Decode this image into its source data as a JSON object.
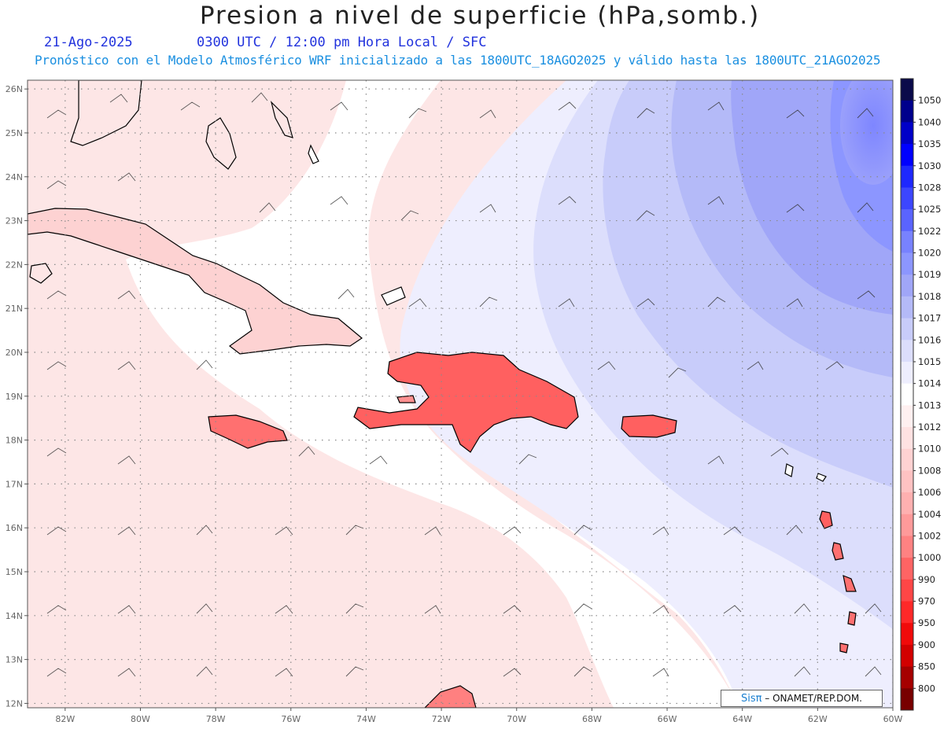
{
  "header": {
    "title": "Presion a nivel de superficie (hPa,somb.)",
    "date": "21-Ago-2025",
    "time_info": "0300 UTC / 12:00 pm Hora Local / SFC",
    "model_info": "Pronóstico con el Modelo Atmosférico WRF inicializado a las 1800UTC_18AGO2025 y válido hasta las  1800UTC_21AGO2025"
  },
  "map": {
    "lon_labels": [
      "82W",
      "80W",
      "78W",
      "76W",
      "74W",
      "72W",
      "70W",
      "68W",
      "66W",
      "64W",
      "62W",
      "60W"
    ],
    "lat_labels": [
      "26N",
      "25N",
      "24N",
      "23N",
      "22N",
      "21N",
      "20N",
      "19N",
      "18N",
      "17N",
      "16N",
      "15N",
      "14N",
      "13N",
      "12N"
    ]
  },
  "colorbar": {
    "levels": [
      "1050",
      "1040",
      "1035",
      "1030",
      "1028",
      "1025",
      "1022",
      "1020",
      "1019",
      "1018",
      "1017",
      "1016",
      "1015",
      "1014",
      "1013",
      "1012",
      "1010",
      "1008",
      "1006",
      "1004",
      "1002",
      "1000",
      "990",
      "970",
      "950",
      "900",
      "850",
      "800"
    ],
    "colors": [
      "#0a0a4a",
      "#00008c",
      "#0000c8",
      "#0000ff",
      "#1e28ff",
      "#3c46ff",
      "#5a64ff",
      "#7882ff",
      "#8c96ff",
      "#a0a6f8",
      "#b4baf8",
      "#c8ccfa",
      "#dcdefc",
      "#eeeefe",
      "#ffffff",
      "#fff0f0",
      "#ffe2e2",
      "#ffd2d2",
      "#ffc2c2",
      "#ffb0b0",
      "#ff9a9a",
      "#ff8282",
      "#ff6464",
      "#ff4646",
      "#ff2828",
      "#f00a0a",
      "#d20000",
      "#a50000",
      "#780000"
    ]
  },
  "credit": {
    "logo": "Sisπ",
    "text": "– ONAMET/REP.DOM."
  }
}
